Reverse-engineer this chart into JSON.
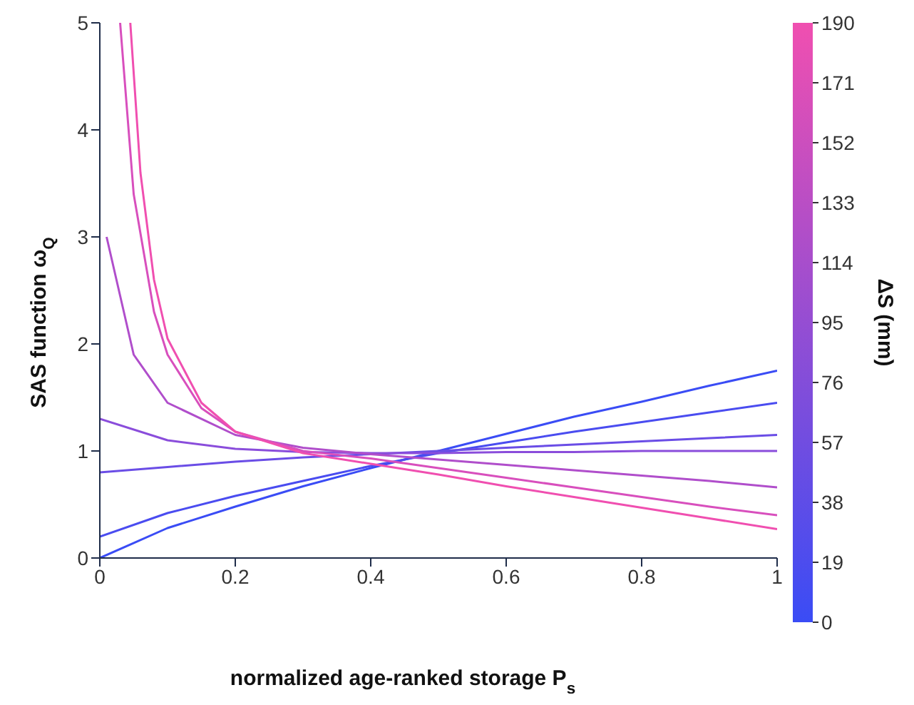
{
  "chart_data": {
    "type": "line",
    "xlabel": "normalized age-ranked storage P$_{s}$",
    "ylabel": "SAS function ω$_{Q}$",
    "clabel": "ΔS (mm)",
    "xlim": [
      0,
      1
    ],
    "xticks": [
      0,
      0.2,
      0.4,
      0.6,
      0.8,
      1
    ],
    "ylim": [
      0,
      5
    ],
    "yticks": [
      0,
      1,
      2,
      3,
      4,
      5
    ],
    "clim": [
      0,
      190
    ],
    "cticks": [
      0,
      19,
      38,
      57,
      76,
      95,
      114,
      133,
      152,
      171,
      190
    ],
    "marker": "none",
    "line_style": "solid",
    "series": [
      {
        "color": "#3a4cf5",
        "x": [
          0,
          0.1,
          0.2,
          0.3,
          0.4,
          0.5,
          0.6,
          0.7,
          0.8,
          0.9,
          1
        ],
        "values": [
          0,
          0.28,
          0.48,
          0.67,
          0.84,
          1.0,
          1.16,
          1.32,
          1.46,
          1.61,
          1.75
        ]
      },
      {
        "color": "#4a4cf0",
        "x": [
          0,
          0.1,
          0.2,
          0.3,
          0.4,
          0.5,
          0.6,
          0.7,
          0.8,
          0.9,
          1
        ],
        "values": [
          0.2,
          0.42,
          0.58,
          0.72,
          0.86,
          0.98,
          1.08,
          1.18,
          1.27,
          1.36,
          1.45
        ]
      },
      {
        "color": "#6a4de6",
        "x": [
          0,
          0.1,
          0.2,
          0.3,
          0.4,
          0.5,
          0.6,
          0.7,
          0.8,
          0.9,
          1
        ],
        "values": [
          0.8,
          0.85,
          0.9,
          0.94,
          0.97,
          1.0,
          1.03,
          1.06,
          1.09,
          1.12,
          1.15
        ]
      },
      {
        "color": "#8a4ddb",
        "x": [
          0,
          0.1,
          0.2,
          0.3,
          0.4,
          0.5,
          0.6,
          0.7,
          0.8,
          0.9,
          1
        ],
        "values": [
          1.3,
          1.1,
          1.02,
          0.99,
          0.98,
          0.98,
          0.99,
          0.99,
          1.0,
          1.0,
          1.0
        ]
      },
      {
        "color": "#b04ecb",
        "x": [
          0.01,
          0.05,
          0.1,
          0.2,
          0.3,
          0.4,
          0.5,
          0.6,
          0.7,
          0.8,
          0.9,
          1
        ],
        "values": [
          3.0,
          1.9,
          1.45,
          1.15,
          1.03,
          0.97,
          0.92,
          0.87,
          0.82,
          0.77,
          0.72,
          0.66
        ]
      },
      {
        "color": "#d84fbd",
        "x": [
          0.03,
          0.05,
          0.08,
          0.1,
          0.15,
          0.2,
          0.3,
          0.4,
          0.5,
          0.6,
          0.7,
          0.8,
          0.9,
          1
        ],
        "values": [
          5,
          3.4,
          2.3,
          1.9,
          1.4,
          1.18,
          1.0,
          0.93,
          0.84,
          0.75,
          0.66,
          0.57,
          0.48,
          0.4
        ]
      },
      {
        "color": "#f04fb0",
        "x": [
          0.045,
          0.06,
          0.08,
          0.1,
          0.15,
          0.2,
          0.3,
          0.4,
          0.5,
          0.6,
          0.7,
          0.8,
          0.9,
          1
        ],
        "values": [
          5,
          3.6,
          2.6,
          2.05,
          1.45,
          1.18,
          0.98,
          0.88,
          0.78,
          0.67,
          0.57,
          0.47,
          0.37,
          0.27
        ]
      }
    ]
  }
}
